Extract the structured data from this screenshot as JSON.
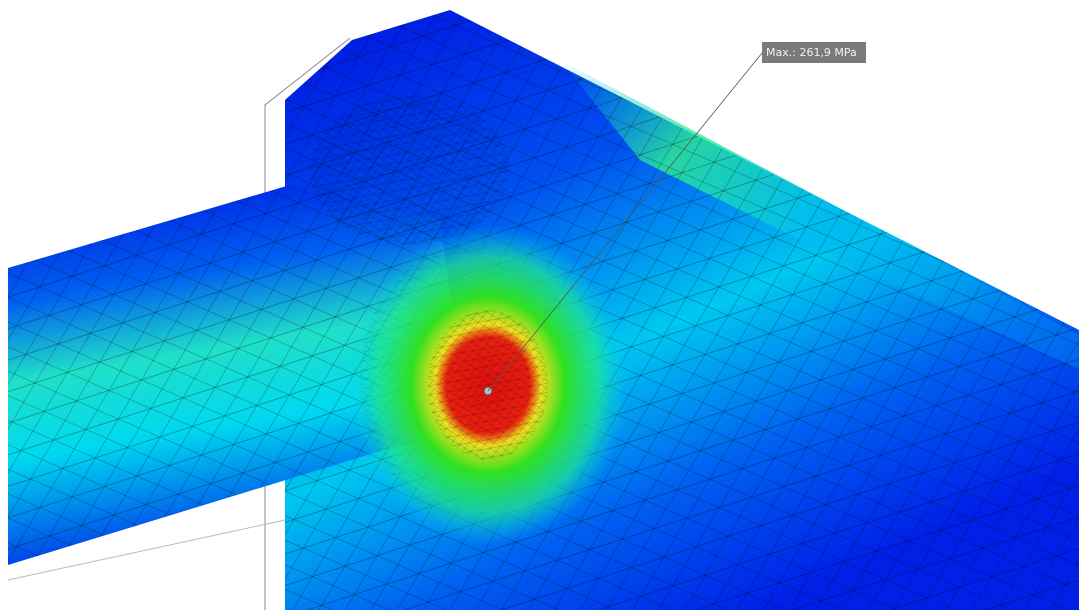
{
  "annotation": {
    "label": "Max.: 261,9 MPa"
  }
}
